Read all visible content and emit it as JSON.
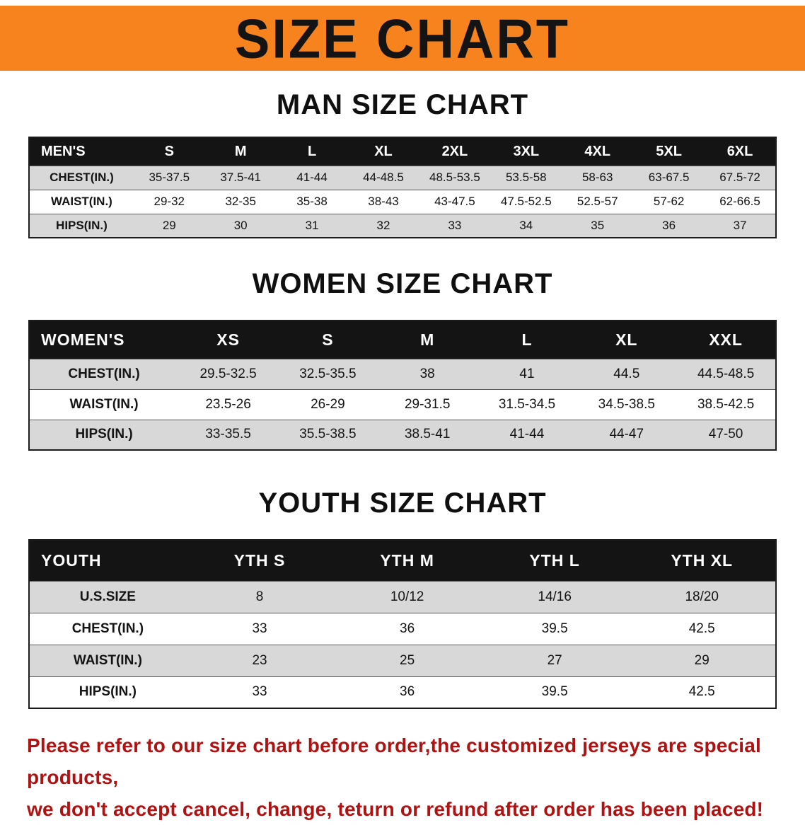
{
  "banner": {
    "title": "SIZE CHART"
  },
  "colors": {
    "banner_bg": "#F6831E",
    "title_color": "#141414",
    "header_row_bg": "#141414",
    "row_alt_bg": "#D8D8D8",
    "note_color": "#B01212"
  },
  "men": {
    "heading": "MAN SIZE CHART",
    "header": [
      "MEN'S",
      "S",
      "M",
      "L",
      "XL",
      "2XL",
      "3XL",
      "4XL",
      "5XL",
      "6XL"
    ],
    "rows": [
      [
        "CHEST(IN.)",
        "35-37.5",
        "37.5-41",
        "41-44",
        "44-48.5",
        "48.5-53.5",
        "53.5-58",
        "58-63",
        "63-67.5",
        "67.5-72"
      ],
      [
        "WAIST(IN.)",
        "29-32",
        "32-35",
        "35-38",
        "38-43",
        "43-47.5",
        "47.5-52.5",
        "52.5-57",
        "57-62",
        "62-66.5"
      ],
      [
        "HIPS(IN.)",
        "29",
        "30",
        "31",
        "32",
        "33",
        "34",
        "35",
        "36",
        "37"
      ]
    ]
  },
  "women": {
    "heading": "WOMEN SIZE CHART",
    "header": [
      "WOMEN'S",
      "XS",
      "S",
      "M",
      "L",
      "XL",
      "XXL"
    ],
    "rows": [
      [
        "CHEST(IN.)",
        "29.5-32.5",
        "32.5-35.5",
        "38",
        "41",
        "44.5",
        "44.5-48.5"
      ],
      [
        "WAIST(IN.)",
        "23.5-26",
        "26-29",
        "29-31.5",
        "31.5-34.5",
        "34.5-38.5",
        "38.5-42.5"
      ],
      [
        "HIPS(IN.)",
        "33-35.5",
        "35.5-38.5",
        "38.5-41",
        "41-44",
        "44-47",
        "47-50"
      ]
    ]
  },
  "youth": {
    "heading": "YOUTH SIZE CHART",
    "header": [
      "YOUTH",
      "YTH S",
      "YTH M",
      "YTH L",
      "YTH XL"
    ],
    "rows": [
      [
        "U.S.SIZE",
        "8",
        "10/12",
        "14/16",
        "18/20"
      ],
      [
        "CHEST(IN.)",
        "33",
        "36",
        "39.5",
        "42.5"
      ],
      [
        "WAIST(IN.)",
        "23",
        "25",
        "27",
        "29"
      ],
      [
        "HIPS(IN.)",
        "33",
        "36",
        "39.5",
        "42.5"
      ]
    ]
  },
  "note": {
    "line1": "Please refer to our size chart before order,the customized jerseys are special products,",
    "line2": "we don't accept cancel, change, teturn or refund after order has been placed!"
  }
}
